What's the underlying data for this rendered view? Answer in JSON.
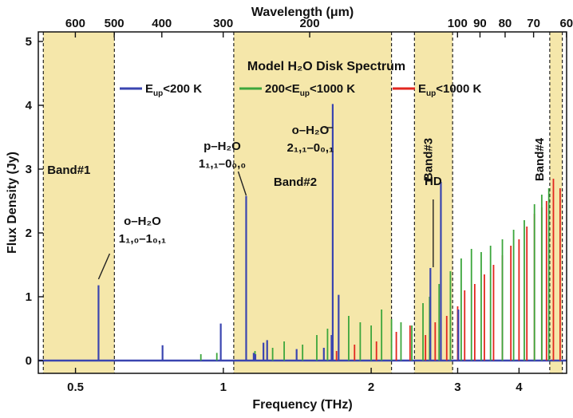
{
  "chart_data": {
    "type": "line",
    "title": "Model H₂O Disk Spectrum",
    "xlabel": "Frequency (THz)",
    "x2label": "Wavelength (μm)",
    "ylabel": "Flux Density (Jy)",
    "xscale": "log",
    "xlim": [
      0.42,
      5.0
    ],
    "ylim": [
      -0.2,
      5.15
    ],
    "x_ticks": [
      {
        "v": 0.5,
        "label": "0.5"
      },
      {
        "v": 1,
        "label": "1"
      },
      {
        "v": 2,
        "label": "2"
      },
      {
        "v": 3,
        "label": "3"
      },
      {
        "v": 4,
        "label": "4"
      }
    ],
    "y_ticks": [
      {
        "v": 0,
        "label": "0"
      },
      {
        "v": 1,
        "label": "1"
      },
      {
        "v": 2,
        "label": "2"
      },
      {
        "v": 3,
        "label": "3"
      },
      {
        "v": 4,
        "label": "4"
      },
      {
        "v": 5,
        "label": "5"
      }
    ],
    "x2_ticks": [
      {
        "um": 600,
        "label": "600"
      },
      {
        "um": 500,
        "label": "500"
      },
      {
        "um": 400,
        "label": "400"
      },
      {
        "um": 300,
        "label": "300"
      },
      {
        "um": 200,
        "label": "200"
      },
      {
        "um": 100,
        "label": "100"
      },
      {
        "um": 90,
        "label": "90"
      },
      {
        "um": 80,
        "label": "80"
      },
      {
        "um": 70,
        "label": "70"
      },
      {
        "um": 60,
        "label": "60"
      }
    ],
    "bands": [
      {
        "name": "Band#1",
        "start": 0.43,
        "end": 0.6
      },
      {
        "name": "Band#2",
        "start": 1.05,
        "end": 2.2
      },
      {
        "name": "Band#3",
        "start": 2.45,
        "end": 2.93
      },
      {
        "name": "Band#4",
        "start": 4.62,
        "end": 4.9
      }
    ],
    "grid": false,
    "legend_position": "top",
    "series": [
      {
        "name": "E_up<200 K",
        "label_main": "E",
        "label_sub": "up",
        "label_rest": "<200 K",
        "color": "#3a45b0",
        "x": [
          0.557,
          0.752,
          0.988,
          1.113,
          1.153,
          1.162,
          1.207,
          1.228,
          1.41,
          1.602,
          1.661,
          1.67,
          1.717,
          2.64,
          2.773,
          3.01
        ],
        "y": [
          1.18,
          0.24,
          0.58,
          2.58,
          0.12,
          0.1,
          0.28,
          0.32,
          0.18,
          0.2,
          0.4,
          4.02,
          1.03,
          1.45,
          2.8,
          0.8
        ]
      },
      {
        "name": "200<E_up<1000 K",
        "label_pre": "200<E",
        "label_sub": "up",
        "label_rest": "<1000 K",
        "color": "#3ca63c",
        "x": [
          0.9,
          0.97,
          1.16,
          1.26,
          1.33,
          1.45,
          1.55,
          1.63,
          1.8,
          1.9,
          2.0,
          2.1,
          2.2,
          2.3,
          2.42,
          2.55,
          2.63,
          2.75,
          2.9,
          3.05,
          3.2,
          3.35,
          3.5,
          3.7,
          3.9,
          4.1,
          4.3,
          4.45,
          4.6
        ],
        "y": [
          0.1,
          0.12,
          0.15,
          0.2,
          0.3,
          0.25,
          0.4,
          0.5,
          0.7,
          0.6,
          0.55,
          0.8,
          0.65,
          0.6,
          0.55,
          0.9,
          1.0,
          1.2,
          1.4,
          1.6,
          1.75,
          1.7,
          1.8,
          1.9,
          2.05,
          2.2,
          2.45,
          2.6,
          2.7
        ]
      },
      {
        "name": "E_up<1000 K",
        "label_main": "E",
        "label_sub": "up",
        "label_rest": "<1000 K",
        "color": "#e2261e",
        "x": [
          1.7,
          1.85,
          2.05,
          2.25,
          2.4,
          2.58,
          2.7,
          2.85,
          3.0,
          3.1,
          3.25,
          3.4,
          3.55,
          3.7,
          3.85,
          4.0,
          4.15,
          4.3,
          4.45,
          4.55,
          4.7,
          4.85
        ],
        "y": [
          0.15,
          0.25,
          0.3,
          0.45,
          0.55,
          0.4,
          0.6,
          0.7,
          0.85,
          1.1,
          1.2,
          1.35,
          1.5,
          1.65,
          1.8,
          1.9,
          2.1,
          2.3,
          2.4,
          2.5,
          2.85,
          2.7
        ]
      }
    ],
    "annotations": [
      {
        "id": "o-h2o-110",
        "main": "o–H₂O",
        "trans": "1₁,₀–1₀,₁",
        "x": 0.557
      },
      {
        "id": "p-h2o-111",
        "main": "p–H₂O",
        "trans": "1₁,₁–0₀,₀",
        "x": 1.113
      },
      {
        "id": "o-h2o-212",
        "main": "o–H₂O",
        "trans": "2₁,₁–0₀,₁",
        "x": 1.67
      },
      {
        "id": "hd",
        "main": "HD",
        "trans": "",
        "x": 2.675
      }
    ]
  }
}
